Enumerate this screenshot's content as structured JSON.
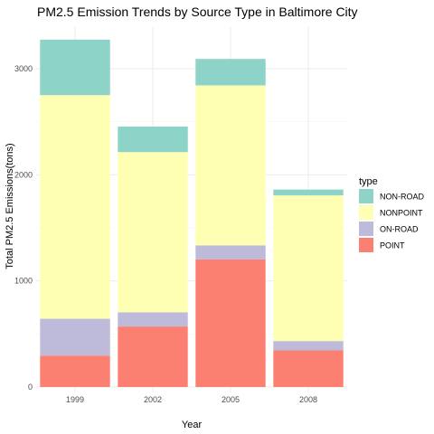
{
  "chart_data": {
    "type": "bar",
    "stacked": true,
    "title": "PM2.5 Emission Trends by Source Type in Baltimore City",
    "xlabel": "Year",
    "ylabel": "Total PM2.5 Emissions(tons)",
    "categories": [
      "1999",
      "2002",
      "2005",
      "2008"
    ],
    "ylim": [
      0,
      3300
    ],
    "yticks": [
      0,
      1000,
      2000,
      3000
    ],
    "grid": true,
    "legend": {
      "title": "type",
      "position": "right"
    },
    "series": [
      {
        "name": "POINT",
        "color": "#fb8072",
        "values": [
          296,
          570,
          1203,
          345
        ]
      },
      {
        "name": "ON-ROAD",
        "color": "#bebada",
        "values": [
          347,
          134,
          131,
          88
        ]
      },
      {
        "name": "NONPOINT",
        "color": "#ffffb3",
        "values": [
          2108,
          1510,
          1509,
          1373
        ]
      },
      {
        "name": "NON-ROAD",
        "color": "#8dd3c7",
        "values": [
          523,
          241,
          249,
          55
        ]
      }
    ],
    "legend_order": [
      "NON-ROAD",
      "NONPOINT",
      "ON-ROAD",
      "POINT"
    ]
  }
}
